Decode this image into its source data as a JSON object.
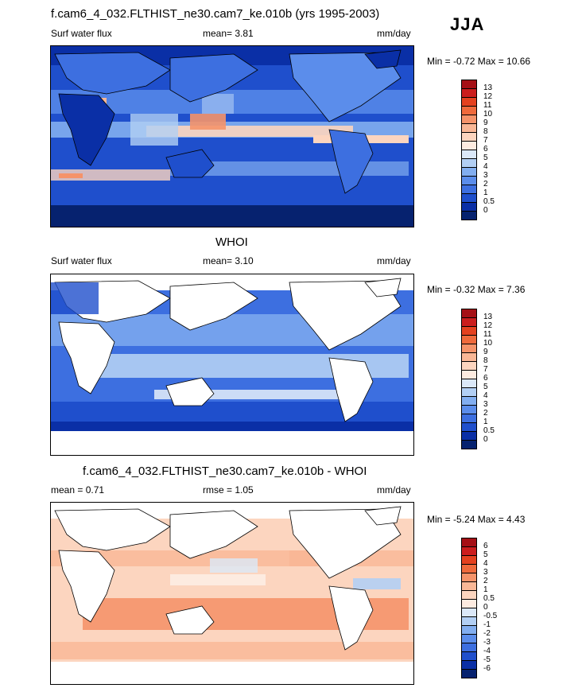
{
  "season": "JJA",
  "panels": [
    {
      "title": "f.cam6_4_032.FLTHIST_ne30.cam7_ke.010b (yrs 1995-2003)",
      "left_label": "Surf water flux",
      "center_label": "mean=   3.81",
      "units": "mm/day",
      "minmax": "Min =  -0.72 Max =  10.66"
    },
    {
      "title": "WHOI",
      "left_label": "Surf water flux",
      "center_label": "mean=   3.10",
      "units": "mm/day",
      "minmax": "Min =  -0.32 Max =   7.36"
    },
    {
      "title": "f.cam6_4_032.FLTHIST_ne30.cam7_ke.010b - WHOI",
      "left_label": "mean =   0.71",
      "center_label": "rmse =   1.05",
      "units": "mm/day",
      "minmax": "Min =  -5.24 Max =   4.43"
    }
  ],
  "colorbar_abs": {
    "labels": [
      "13",
      "12",
      "11",
      "10",
      "9",
      "8",
      "7",
      "6",
      "5",
      "4",
      "3",
      "2",
      "1",
      "0.5",
      "0"
    ],
    "colors": [
      "#a50f15",
      "#cb1d1d",
      "#e4411f",
      "#ef6a3c",
      "#f5936a",
      "#f9b796",
      "#fcd5bf",
      "#fdebe0",
      "#dbe8f8",
      "#b2cff4",
      "#82aef0",
      "#5b8deb",
      "#3d6fe0",
      "#1f4fcc",
      "#0a2fa6",
      "#06226f"
    ]
  },
  "colorbar_diff": {
    "labels": [
      "6",
      "5",
      "4",
      "3",
      "2",
      "1",
      "0.5",
      "0",
      "-0.5",
      "-1",
      "-2",
      "-3",
      "-4",
      "-5",
      "-6"
    ],
    "colors": [
      "#a50f15",
      "#cb1d1d",
      "#e4411f",
      "#ef6a3c",
      "#f5936a",
      "#f9b796",
      "#fcd5bf",
      "#fdebe0",
      "#dbe8f8",
      "#b2cff4",
      "#82aef0",
      "#5b8deb",
      "#3d6fe0",
      "#1f4fcc",
      "#0a2fa6",
      "#06226f"
    ]
  }
}
